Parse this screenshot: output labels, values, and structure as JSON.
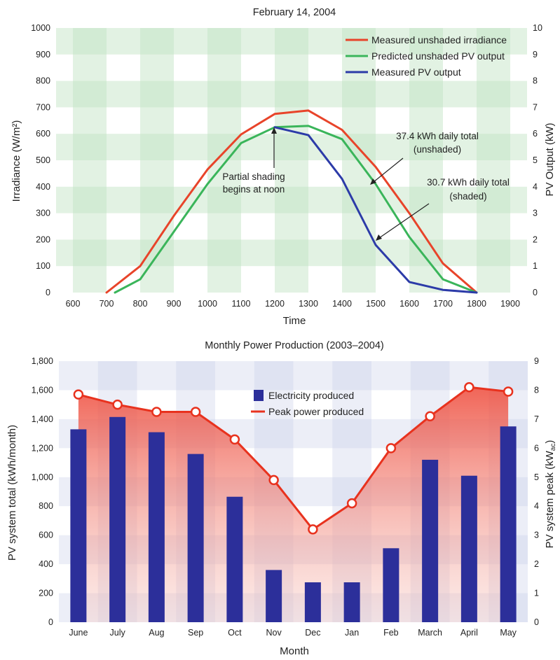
{
  "chart_data": [
    {
      "type": "line",
      "title": "February 14, 2004",
      "xlabel": "Time",
      "ylabel": "Irradiance (W/m²)",
      "ylabel_right": "PV Output (kW)",
      "xlim": [
        550,
        1950
      ],
      "ylim": [
        0,
        1000
      ],
      "ylim_right": [
        0,
        10
      ],
      "x_ticks": [
        "600",
        "700",
        "800",
        "900",
        "1000",
        "1100",
        "1200",
        "1300",
        "1400",
        "1500",
        "1600",
        "1700",
        "1800",
        "1900"
      ],
      "y_ticks": [
        "1000",
        "900",
        "800",
        "700",
        "600",
        "500",
        "400",
        "300",
        "200",
        "100",
        "0"
      ],
      "y_ticks_right": [
        "10",
        "9",
        "8",
        "7",
        "6",
        "5",
        "4",
        "3",
        "2",
        "1",
        "0"
      ],
      "grid": "shaded bands",
      "legend_position": "top-right",
      "series": [
        {
          "name": "Measured unshaded irradiance",
          "color": "#e8442a",
          "axis": "left",
          "x": [
            700,
            800,
            900,
            1000,
            1100,
            1200,
            1300,
            1400,
            1500,
            1600,
            1700,
            1800
          ],
          "y": [
            0,
            100,
            290,
            465,
            598,
            675,
            688,
            615,
            475,
            300,
            110,
            0
          ]
        },
        {
          "name": "Predicted unshaded PV output",
          "color": "#3ab55a",
          "axis": "right",
          "x": [
            725,
            800,
            900,
            1000,
            1100,
            1200,
            1300,
            1400,
            1500,
            1600,
            1700,
            1800
          ],
          "y": [
            0,
            0.5,
            2.3,
            4.1,
            5.65,
            6.25,
            6.3,
            5.8,
            4.1,
            2.1,
            0.5,
            0
          ]
        },
        {
          "name": "Measured PV output",
          "color": "#2c3ba8",
          "axis": "right",
          "x": [
            1200,
            1300,
            1400,
            1500,
            1600,
            1700,
            1800
          ],
          "y": [
            6.25,
            5.95,
            4.3,
            1.8,
            0.4,
            0.1,
            0
          ]
        }
      ],
      "annotations": [
        {
          "lines": [
            "Partial shading",
            "begins at noon"
          ],
          "arrow_to": [
            1200,
            625
          ]
        },
        {
          "lines": [
            "37.4 kWh daily total",
            "(unshaded)"
          ],
          "arrow_to": [
            1475,
            525
          ]
        },
        {
          "lines": [
            "30.7 kWh daily total",
            "(shaded)"
          ],
          "arrow_to": [
            1495,
            185
          ]
        }
      ]
    },
    {
      "type": "bar",
      "title": "Monthly Power Production (2003–2004)",
      "xlabel": "Month",
      "ylabel": "PV system total (kWh/month)",
      "ylabel_right": "PV system peak (kW",
      "ylabel_right_sub": "ac",
      "ylim": [
        0,
        1800
      ],
      "ylim_right": [
        0,
        9
      ],
      "y_ticks": [
        "1,800",
        "1,600",
        "1,400",
        "1,200",
        "1,000",
        "800",
        "600",
        "400",
        "200",
        "0"
      ],
      "y_ticks_right": [
        "9",
        "8",
        "7",
        "6",
        "5",
        "4",
        "3",
        "2",
        "1",
        "0"
      ],
      "categories": [
        "June",
        "July",
        "Aug",
        "Sep",
        "Oct",
        "Nov",
        "Dec",
        "Jan",
        "Feb",
        "March",
        "April",
        "May"
      ],
      "grid": "shaded bands",
      "legend_position": "top-center",
      "series": [
        {
          "name": "Electricity produced",
          "color": "#2c2f9a",
          "axis": "left",
          "type": "bar",
          "values": [
            1330,
            1415,
            1310,
            1160,
            865,
            360,
            275,
            275,
            510,
            1120,
            1010,
            1350
          ]
        },
        {
          "name": "Peak power produced",
          "color": "#e8321e",
          "axis": "right",
          "type": "line",
          "values": [
            7.85,
            7.5,
            7.25,
            7.25,
            6.3,
            4.9,
            3.2,
            4.1,
            6.0,
            7.1,
            8.1,
            7.95
          ]
        }
      ]
    }
  ]
}
